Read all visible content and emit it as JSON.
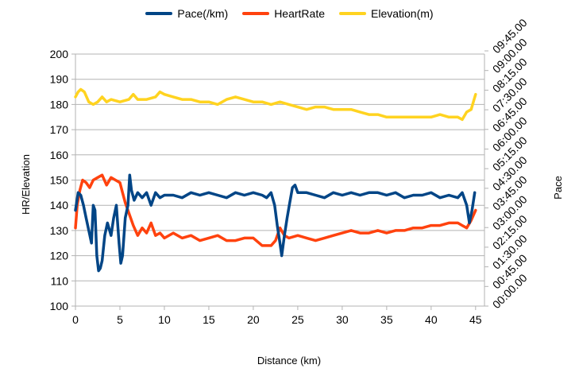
{
  "chart_data": {
    "type": "line",
    "title": "",
    "xlabel": "Distance (km)",
    "ylabel": "HR/Elevation",
    "y2label": "Pace",
    "xlim": [
      0,
      46
    ],
    "ylim": [
      100,
      200
    ],
    "x_ticks": [
      "0",
      "5",
      "10",
      "15",
      "20",
      "25",
      "30",
      "35",
      "40",
      "45"
    ],
    "y_ticks": [
      "100",
      "110",
      "120",
      "130",
      "140",
      "150",
      "160",
      "170",
      "180",
      "190",
      "200"
    ],
    "y2_ticks": [
      "00:00.00",
      "00:45.00",
      "01:30.00",
      "02:15.00",
      "03:00.00",
      "03:45.00",
      "04:30.00",
      "05:15.00",
      "06:00.00",
      "06:45.00",
      "07:30.00",
      "08:15.00",
      "09:00.00",
      "09:45.00"
    ],
    "grid": true,
    "legend_position": "top",
    "series": [
      {
        "name": "Pace(/km)",
        "color": "#004586",
        "axis": "secondary-shown-on-primary-scale",
        "x": [
          0,
          0.3,
          0.6,
          0.9,
          1.2,
          1.5,
          1.8,
          2.0,
          2.2,
          2.4,
          2.6,
          2.8,
          3.0,
          3.3,
          3.6,
          4.0,
          4.3,
          4.6,
          4.9,
          5.1,
          5.3,
          5.6,
          5.9,
          6.1,
          6.3,
          6.6,
          7.0,
          7.5,
          8.0,
          8.5,
          9.0,
          9.5,
          10,
          11,
          12,
          13,
          14,
          15,
          16,
          17,
          18,
          19,
          20,
          21,
          21.5,
          22,
          22.4,
          22.7,
          23.0,
          23.2,
          23.5,
          23.8,
          24.1,
          24.4,
          24.7,
          25,
          26,
          27,
          28,
          29,
          30,
          31,
          32,
          33,
          34,
          35,
          36,
          37,
          38,
          39,
          40,
          41,
          42,
          43,
          43.5,
          44,
          44.3,
          44.6,
          44.9
        ],
        "values": [
          138,
          145,
          144,
          140,
          135,
          130,
          125,
          140,
          138,
          120,
          114,
          115,
          118,
          128,
          133,
          128,
          135,
          140,
          125,
          117,
          120,
          135,
          140,
          152,
          146,
          142,
          145,
          143,
          145,
          140,
          145,
          143,
          144,
          144,
          143,
          145,
          144,
          145,
          144,
          143,
          145,
          144,
          145,
          144,
          143,
          145,
          140,
          132,
          125,
          120,
          128,
          135,
          141,
          147,
          148,
          145,
          145,
          144,
          143,
          145,
          144,
          145,
          144,
          145,
          145,
          144,
          145,
          143,
          144,
          144,
          145,
          143,
          144,
          143,
          145,
          140,
          133,
          138,
          145
        ]
      },
      {
        "name": "HeartRate",
        "color": "#ff420e",
        "axis": "primary",
        "x": [
          0,
          0.2,
          0.5,
          0.8,
          1.2,
          1.6,
          2.0,
          2.5,
          3.0,
          3.5,
          4.0,
          4.5,
          5.0,
          5.3,
          5.6,
          6.0,
          6.5,
          7.0,
          7.5,
          8.0,
          8.5,
          9.0,
          9.5,
          10,
          11,
          12,
          13,
          14,
          15,
          16,
          17,
          18,
          19,
          20,
          21,
          22,
          22.5,
          23,
          23.5,
          24,
          25,
          26,
          27,
          28,
          29,
          30,
          31,
          32,
          33,
          34,
          35,
          36,
          37,
          38,
          39,
          40,
          41,
          42,
          43,
          43.5,
          44,
          44.5,
          45
        ],
        "values": [
          131,
          140,
          146,
          150,
          149,
          147,
          150,
          151,
          152,
          148,
          151,
          150,
          149,
          145,
          141,
          137,
          132,
          128,
          131,
          129,
          133,
          128,
          129,
          127,
          129,
          127,
          128,
          126,
          127,
          128,
          126,
          126,
          127,
          127,
          124,
          124,
          126,
          131,
          128,
          127,
          128,
          127,
          126,
          127,
          128,
          129,
          130,
          129,
          129,
          130,
          129,
          130,
          130,
          131,
          131,
          132,
          132,
          133,
          133,
          132,
          131,
          134,
          138
        ]
      },
      {
        "name": "Elevation(m)",
        "color": "#ffd320",
        "axis": "primary",
        "x": [
          0,
          0.3,
          0.6,
          1.0,
          1.5,
          2.0,
          2.5,
          3.0,
          3.5,
          4.0,
          5.0,
          6.0,
          6.5,
          7.0,
          8.0,
          9.0,
          9.5,
          10,
          11,
          12,
          13,
          14,
          15,
          16,
          17,
          18,
          19,
          20,
          21,
          22,
          23,
          24,
          25,
          26,
          27,
          28,
          29,
          30,
          31,
          32,
          33,
          34,
          35,
          36,
          37,
          38,
          39,
          40,
          41,
          42,
          43,
          43.5,
          44,
          44.5,
          45
        ],
        "values": [
          183,
          185,
          186,
          185,
          181,
          180,
          181,
          183,
          181,
          182,
          181,
          182,
          184,
          182,
          182,
          183,
          185,
          184,
          183,
          182,
          182,
          181,
          181,
          180,
          182,
          183,
          182,
          181,
          181,
          180,
          181,
          180,
          179,
          178,
          179,
          179,
          178,
          178,
          178,
          177,
          176,
          176,
          175,
          175,
          175,
          175,
          175,
          175,
          176,
          175,
          175,
          174,
          177,
          178,
          184
        ]
      }
    ]
  }
}
